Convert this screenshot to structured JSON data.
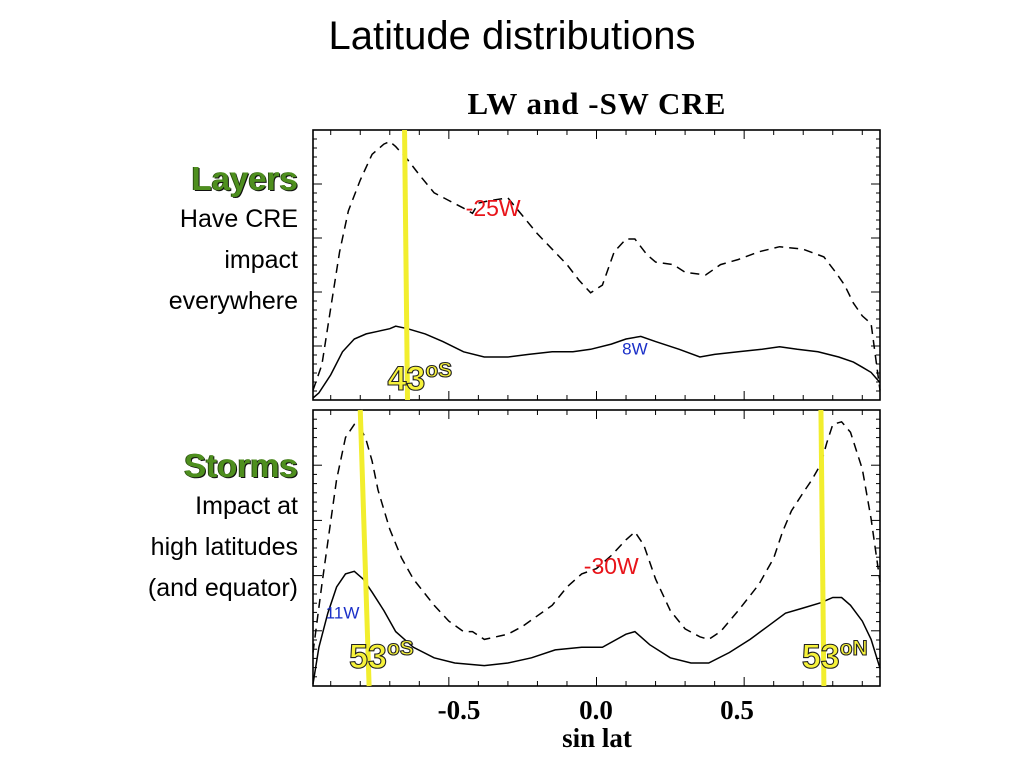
{
  "slide": {
    "title": "Latitude distributions"
  },
  "sidebar": {
    "layers": {
      "heading": "Layers",
      "lines": [
        "Have CRE",
        "impact",
        "everywhere"
      ]
    },
    "storms": {
      "heading": "Storms",
      "lines": [
        "Impact at",
        "high latitudes",
        "(and equator)"
      ]
    }
  },
  "chart_data": {
    "type": "line",
    "title": "LW and -SW CRE",
    "xlabel": "sin lat",
    "xlim": [
      -0.96,
      0.96
    ],
    "x_ticks": [
      -0.5,
      0.0,
      0.5
    ],
    "x_tick_labels": [
      "-0.5",
      "0.0",
      "0.5"
    ],
    "grid": false,
    "colors": {
      "lw_line": "#000000",
      "highlight": "#f2ee2e",
      "red_label": "#e8141a",
      "blue_label": "#1a2fc8",
      "label_fill": "#f6f23a"
    },
    "panels": [
      {
        "name": "Layers",
        "ylim": [
          0,
          1
        ],
        "series": [
          {
            "style": "dashed",
            "x": [
              -0.96,
              -0.93,
              -0.9,
              -0.87,
              -0.84,
              -0.8,
              -0.76,
              -0.72,
              -0.7,
              -0.68,
              -0.64,
              -0.6,
              -0.55,
              -0.5,
              -0.45,
              -0.42,
              -0.4,
              -0.36,
              -0.3,
              -0.25,
              -0.2,
              -0.15,
              -0.1,
              -0.06,
              -0.02,
              0.02,
              0.06,
              0.1,
              0.13,
              0.17,
              0.2,
              0.26,
              0.3,
              0.37,
              0.42,
              0.48,
              0.55,
              0.62,
              0.7,
              0.77,
              0.81,
              0.84,
              0.87,
              0.9,
              0.93,
              0.96
            ],
            "y": [
              0.03,
              0.13,
              0.35,
              0.57,
              0.73,
              0.85,
              0.95,
              0.99,
              1.0,
              0.98,
              0.93,
              0.87,
              0.8,
              0.77,
              0.74,
              0.72,
              0.76,
              0.77,
              0.78,
              0.71,
              0.64,
              0.58,
              0.52,
              0.46,
              0.41,
              0.44,
              0.57,
              0.62,
              0.62,
              0.56,
              0.53,
              0.52,
              0.49,
              0.48,
              0.52,
              0.54,
              0.57,
              0.59,
              0.58,
              0.55,
              0.49,
              0.44,
              0.37,
              0.32,
              0.29,
              0.03
            ]
          },
          {
            "style": "solid",
            "x": [
              -0.96,
              -0.94,
              -0.9,
              -0.86,
              -0.82,
              -0.78,
              -0.74,
              -0.7,
              -0.68,
              -0.64,
              -0.58,
              -0.52,
              -0.45,
              -0.38,
              -0.3,
              -0.23,
              -0.15,
              -0.08,
              -0.02,
              0.05,
              0.1,
              0.15,
              0.2,
              0.28,
              0.35,
              0.4,
              0.48,
              0.56,
              0.62,
              0.68,
              0.75,
              0.82,
              0.87,
              0.9,
              0.93,
              0.96
            ],
            "y": [
              0.0,
              0.02,
              0.09,
              0.18,
              0.23,
              0.25,
              0.26,
              0.27,
              0.28,
              0.27,
              0.25,
              0.22,
              0.18,
              0.16,
              0.16,
              0.17,
              0.18,
              0.18,
              0.19,
              0.21,
              0.23,
              0.24,
              0.22,
              0.19,
              0.16,
              0.17,
              0.18,
              0.19,
              0.2,
              0.19,
              0.18,
              0.16,
              0.14,
              0.12,
              0.1,
              0.06
            ]
          }
        ],
        "markers": [
          {
            "type": "vline",
            "x_top": -0.65,
            "x_bottom": -0.64,
            "label": "43",
            "sup": "oS"
          }
        ],
        "annotations": [
          {
            "text": "-25W",
            "x": -0.35,
            "y": 0.71,
            "color": "red"
          },
          {
            "text": "8W",
            "x": 0.13,
            "y": 0.17,
            "color": "blue"
          }
        ]
      },
      {
        "name": "Storms",
        "ylim": [
          0,
          1
        ],
        "series": [
          {
            "style": "dashed",
            "x": [
              -0.96,
              -0.93,
              -0.9,
              -0.88,
              -0.85,
              -0.82,
              -0.8,
              -0.78,
              -0.76,
              -0.74,
              -0.7,
              -0.66,
              -0.62,
              -0.55,
              -0.5,
              -0.45,
              -0.42,
              -0.38,
              -0.3,
              -0.25,
              -0.2,
              -0.15,
              -0.1,
              -0.05,
              0.0,
              0.05,
              0.1,
              0.13,
              0.16,
              0.2,
              0.25,
              0.3,
              0.35,
              0.38,
              0.42,
              0.48,
              0.55,
              0.6,
              0.63,
              0.66,
              0.7,
              0.73,
              0.76,
              0.78,
              0.8,
              0.83,
              0.86,
              0.9,
              0.93,
              0.96
            ],
            "y": [
              0.12,
              0.38,
              0.62,
              0.78,
              0.94,
              0.99,
              0.98,
              0.93,
              0.85,
              0.74,
              0.59,
              0.48,
              0.4,
              0.3,
              0.24,
              0.2,
              0.2,
              0.17,
              0.19,
              0.22,
              0.26,
              0.3,
              0.37,
              0.42,
              0.44,
              0.49,
              0.55,
              0.58,
              0.53,
              0.4,
              0.28,
              0.21,
              0.18,
              0.17,
              0.2,
              0.28,
              0.38,
              0.48,
              0.58,
              0.66,
              0.73,
              0.78,
              0.84,
              0.92,
              0.99,
              1.0,
              0.96,
              0.82,
              0.63,
              0.39
            ]
          },
          {
            "style": "solid",
            "x": [
              -0.96,
              -0.94,
              -0.91,
              -0.88,
              -0.85,
              -0.82,
              -0.79,
              -0.76,
              -0.72,
              -0.68,
              -0.62,
              -0.55,
              -0.48,
              -0.38,
              -0.3,
              -0.22,
              -0.14,
              -0.05,
              0.02,
              0.1,
              0.13,
              0.18,
              0.25,
              0.32,
              0.38,
              0.45,
              0.52,
              0.58,
              0.64,
              0.7,
              0.76,
              0.8,
              0.83,
              0.86,
              0.9,
              0.93,
              0.96
            ],
            "y": [
              0.0,
              0.14,
              0.27,
              0.37,
              0.42,
              0.43,
              0.4,
              0.35,
              0.28,
              0.2,
              0.14,
              0.1,
              0.08,
              0.07,
              0.08,
              0.1,
              0.13,
              0.14,
              0.14,
              0.19,
              0.2,
              0.15,
              0.1,
              0.08,
              0.08,
              0.12,
              0.17,
              0.22,
              0.27,
              0.29,
              0.31,
              0.33,
              0.33,
              0.3,
              0.24,
              0.17,
              0.06
            ]
          }
        ],
        "markers": [
          {
            "type": "vline",
            "x_top": -0.8,
            "x_bottom": -0.77,
            "label": "53",
            "sup": "oS"
          },
          {
            "type": "vline",
            "x_top": 0.76,
            "x_bottom": 0.77,
            "label": "53",
            "sup": "oN"
          }
        ],
        "annotations": [
          {
            "text": "-30W",
            "x": 0.05,
            "y": 0.42,
            "color": "red"
          },
          {
            "text": "11W",
            "x": -0.86,
            "y": 0.25,
            "color": "blue"
          }
        ]
      }
    ]
  }
}
